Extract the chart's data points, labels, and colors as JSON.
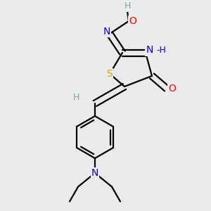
{
  "bg_color": "#ebebeb",
  "atom_colors": {
    "C": "#000000",
    "H": "#6fa8a8",
    "N": "#0000ff",
    "O": "#ff0000",
    "S": "#ccaa00"
  },
  "bond_color": "#000000",
  "bond_width": 1.6,
  "figsize": [
    3.0,
    3.0
  ],
  "dpi": 100
}
